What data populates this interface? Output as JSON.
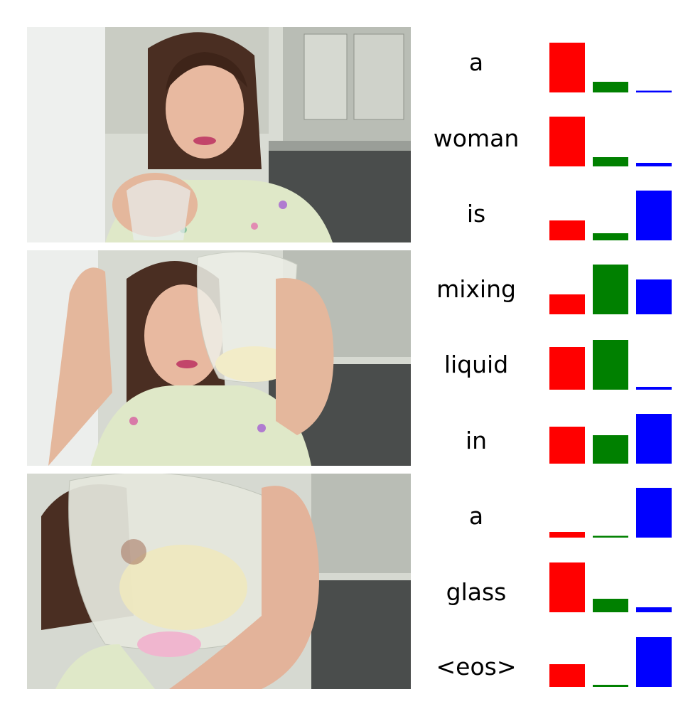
{
  "frames": [
    {
      "name": "video-frame-1"
    },
    {
      "name": "video-frame-2"
    },
    {
      "name": "video-frame-3"
    }
  ],
  "chart_data": {
    "type": "bar",
    "categories": [
      "a",
      "woman",
      "is",
      "mixing",
      "liquid",
      "in",
      "a",
      "glass",
      "<eos>"
    ],
    "series": [
      {
        "color": "#ff0000",
        "values": [
          0.7,
          0.7,
          0.28,
          0.28,
          0.6,
          0.52,
          0.08,
          0.7,
          0.32
        ]
      },
      {
        "color": "#008000",
        "values": [
          0.15,
          0.13,
          0.1,
          0.7,
          0.7,
          0.4,
          0.02,
          0.19,
          0.03
        ]
      },
      {
        "color": "#0000ff",
        "values": [
          0.02,
          0.05,
          0.7,
          0.49,
          0.04,
          0.7,
          0.7,
          0.07,
          0.7
        ]
      }
    ],
    "ylim": [
      0,
      0.7
    ],
    "grid": false,
    "legend": "none"
  }
}
